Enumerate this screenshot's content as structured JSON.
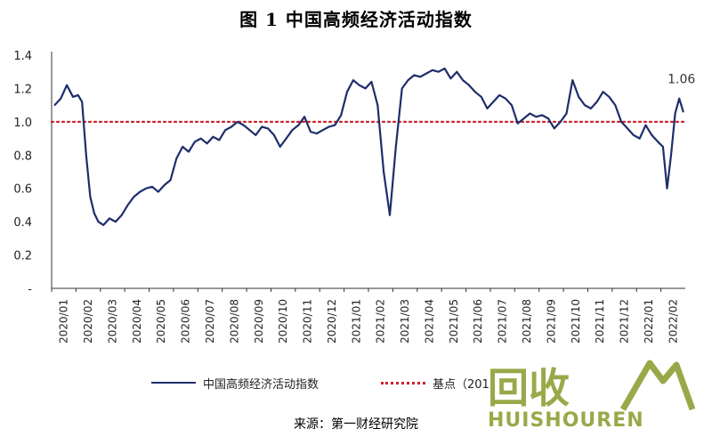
{
  "title": "图 1  中国高频经济活动指数",
  "source": "来源：第一财经研究院",
  "legend": {
    "series_label": "中国高频经济活动指数",
    "baseline_label": "基点（201"
  },
  "watermark": {
    "cn": "回收",
    "en": "HUISHOUREN"
  },
  "colors": {
    "series": "#1f2d6b",
    "baseline": "#c9252b",
    "watermark": "#8a9a2a"
  },
  "chart_data": {
    "type": "line",
    "title": "图 1  中国高频经济活动指数",
    "ylim": [
      0,
      1.4
    ],
    "yticks": [
      0,
      0.2,
      0.4,
      0.6,
      0.8,
      1.0,
      1.2,
      1.4
    ],
    "ytick_labels": [
      "-",
      "0.2",
      "0.4",
      "0.6",
      "0.8",
      "1.0",
      "1.2",
      "1.4"
    ],
    "x_tick_labels": [
      "2020/01",
      "2020/02",
      "2020/03",
      "2020/04",
      "2020/05",
      "2020/06",
      "2020/07",
      "2020/08",
      "2020/09",
      "2020/10",
      "2020/11",
      "2020/12",
      "2021/01",
      "2021/02",
      "2021/03",
      "2021/04",
      "2021/05",
      "2021/06",
      "2021/07",
      "2021/08",
      "2021/09",
      "2021/10",
      "2021/11",
      "2021/12",
      "2022/01",
      "2022/02"
    ],
    "baseline": 1.0,
    "grid": false,
    "legend_position": "bottom",
    "end_label": "1.06",
    "series": [
      {
        "name": "中国高频经济活动指数",
        "points": [
          [
            "2020/01",
            1.1
          ],
          [
            "2020/01",
            1.14
          ],
          [
            "2020/01",
            1.22
          ],
          [
            "2020/01",
            1.15
          ],
          [
            "2020/02",
            1.16
          ],
          [
            "2020/02",
            1.12
          ],
          [
            "2020/02",
            0.8
          ],
          [
            "2020/02",
            0.55
          ],
          [
            "2020/02",
            0.45
          ],
          [
            "2020/02",
            0.4
          ],
          [
            "2020/03",
            0.38
          ],
          [
            "2020/03",
            0.42
          ],
          [
            "2020/03",
            0.4
          ],
          [
            "2020/03",
            0.44
          ],
          [
            "2020/04",
            0.5
          ],
          [
            "2020/04",
            0.55
          ],
          [
            "2020/04",
            0.58
          ],
          [
            "2020/04",
            0.6
          ],
          [
            "2020/05",
            0.61
          ],
          [
            "2020/05",
            0.58
          ],
          [
            "2020/05",
            0.62
          ],
          [
            "2020/05",
            0.65
          ],
          [
            "2020/06",
            0.78
          ],
          [
            "2020/06",
            0.85
          ],
          [
            "2020/06",
            0.82
          ],
          [
            "2020/06",
            0.88
          ],
          [
            "2020/07",
            0.9
          ],
          [
            "2020/07",
            0.87
          ],
          [
            "2020/07",
            0.91
          ],
          [
            "2020/07",
            0.89
          ],
          [
            "2020/08",
            0.95
          ],
          [
            "2020/08",
            0.97
          ],
          [
            "2020/08",
            1.0
          ],
          [
            "2020/08",
            0.98
          ],
          [
            "2020/09",
            0.95
          ],
          [
            "2020/09",
            0.92
          ],
          [
            "2020/09",
            0.97
          ],
          [
            "2020/09",
            0.96
          ],
          [
            "2020/10",
            0.92
          ],
          [
            "2020/10",
            0.85
          ],
          [
            "2020/10",
            0.9
          ],
          [
            "2020/10",
            0.95
          ],
          [
            "2020/11",
            0.98
          ],
          [
            "2020/11",
            1.03
          ],
          [
            "2020/11",
            0.94
          ],
          [
            "2020/11",
            0.93
          ],
          [
            "2020/12",
            0.95
          ],
          [
            "2020/12",
            0.97
          ],
          [
            "2020/12",
            0.98
          ],
          [
            "2020/12",
            1.04
          ],
          [
            "2021/01",
            1.18
          ],
          [
            "2021/01",
            1.25
          ],
          [
            "2021/01",
            1.22
          ],
          [
            "2021/01",
            1.2
          ],
          [
            "2021/02",
            1.24
          ],
          [
            "2021/02",
            1.1
          ],
          [
            "2021/02",
            0.7
          ],
          [
            "2021/02",
            0.44
          ],
          [
            "2021/03",
            0.85
          ],
          [
            "2021/03",
            1.2
          ],
          [
            "2021/03",
            1.25
          ],
          [
            "2021/03",
            1.28
          ],
          [
            "2021/04",
            1.27
          ],
          [
            "2021/04",
            1.29
          ],
          [
            "2021/04",
            1.31
          ],
          [
            "2021/04",
            1.3
          ],
          [
            "2021/05",
            1.32
          ],
          [
            "2021/05",
            1.26
          ],
          [
            "2021/05",
            1.3
          ],
          [
            "2021/05",
            1.25
          ],
          [
            "2021/06",
            1.22
          ],
          [
            "2021/06",
            1.18
          ],
          [
            "2021/06",
            1.15
          ],
          [
            "2021/06",
            1.08
          ],
          [
            "2021/07",
            1.12
          ],
          [
            "2021/07",
            1.16
          ],
          [
            "2021/07",
            1.14
          ],
          [
            "2021/07",
            1.1
          ],
          [
            "2021/08",
            0.99
          ],
          [
            "2021/08",
            1.02
          ],
          [
            "2021/08",
            1.05
          ],
          [
            "2021/08",
            1.03
          ],
          [
            "2021/09",
            1.04
          ],
          [
            "2021/09",
            1.02
          ],
          [
            "2021/09",
            0.96
          ],
          [
            "2021/09",
            1.0
          ],
          [
            "2021/10",
            1.05
          ],
          [
            "2021/10",
            1.25
          ],
          [
            "2021/10",
            1.15
          ],
          [
            "2021/10",
            1.1
          ],
          [
            "2021/11",
            1.08
          ],
          [
            "2021/11",
            1.12
          ],
          [
            "2021/11",
            1.18
          ],
          [
            "2021/11",
            1.15
          ],
          [
            "2021/12",
            1.1
          ],
          [
            "2021/12",
            1.0
          ],
          [
            "2021/12",
            0.96
          ],
          [
            "2021/12",
            0.92
          ],
          [
            "2022/01",
            0.9
          ],
          [
            "2022/01",
            0.98
          ],
          [
            "2022/01",
            0.92
          ],
          [
            "2022/01",
            0.88
          ],
          [
            "2022/02",
            0.85
          ],
          [
            "2022/02",
            0.6
          ],
          [
            "2022/02",
            0.8
          ],
          [
            "2022/02",
            1.05
          ],
          [
            "2022/02",
            1.14
          ],
          [
            "2022/02",
            1.06
          ]
        ]
      }
    ]
  }
}
